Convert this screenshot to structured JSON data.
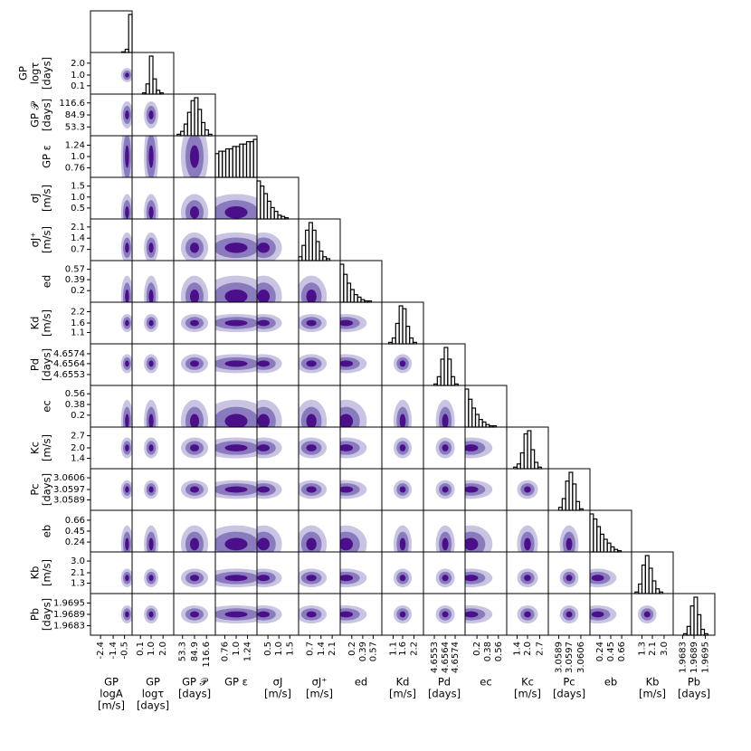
{
  "chart_data": {
    "type": "corner",
    "contour_colors": [
      "#c9c4e2",
      "#8a7bbf",
      "#4b0f8a"
    ],
    "hist_color": "#000000",
    "params": [
      {
        "label": [
          "GP",
          "logA",
          "[m/s]"
        ],
        "lim": [
          -3.2,
          0.1
        ],
        "ticks": [
          -2.4,
          -1.4,
          -0.5
        ],
        "median": -0.3,
        "sigma": 0.2,
        "hist": [
          0,
          0,
          0,
          0,
          0,
          0,
          0,
          0,
          0,
          1,
          5,
          60
        ]
      },
      {
        "label": [
          "GP",
          "logτ",
          "[days]"
        ],
        "lim": [
          -0.6,
          2.9
        ],
        "ticks": [
          0.1,
          {
            "value": 1.0,
            "label": "1.0"
          },
          {
            "value": 2.0,
            "label": "2.0"
          }
        ],
        "median": 1.0,
        "sigma": 0.25,
        "hist": [
          0,
          0,
          0,
          1,
          8,
          30,
          12,
          3,
          1,
          0,
          0,
          0
        ]
      },
      {
        "label": [
          "GP 𝒫",
          "[days]"
        ],
        "lim": [
          30,
          140
        ],
        "ticks": [
          53.3,
          84.9,
          116.6
        ],
        "median": 85,
        "sigma": 15,
        "hist": [
          0,
          1,
          3,
          8,
          16,
          24,
          26,
          18,
          9,
          4,
          1,
          0
        ]
      },
      {
        "label": [
          "GP ε"
        ],
        "lim": [
          0.56,
          1.44
        ],
        "ticks": [
          0.76,
          {
            "value": 1.0,
            "label": "1.0"
          },
          1.24
        ],
        "median": 1.0,
        "sigma": 0.3,
        "hist": [
          10,
          11,
          11,
          12,
          12,
          13,
          13,
          14,
          14,
          15,
          15,
          16
        ]
      },
      {
        "label": [
          "σJ",
          "[m/s]"
        ],
        "lim": [
          0,
          1.9
        ],
        "ticks": [
          0.5,
          {
            "value": 1.0,
            "label": "1.0"
          },
          1.5
        ],
        "median": 0.3,
        "sigma": 0.35,
        "hist": [
          30,
          26,
          20,
          14,
          9,
          6,
          3,
          2,
          1,
          0,
          0,
          0
        ]
      },
      {
        "label": [
          "σJ⁺",
          "[m/s]"
        ],
        "lim": [
          0,
          2.6
        ],
        "ticks": [
          0.7,
          1.4,
          2.1
        ],
        "median": 0.8,
        "sigma": 0.4,
        "hist": [
          2,
          8,
          16,
          20,
          16,
          10,
          5,
          2,
          1,
          0,
          0,
          0
        ]
      },
      {
        "label": [
          "ed"
        ],
        "lim": [
          0,
          0.72
        ],
        "ticks": [
          0.2,
          0.39,
          0.57
        ],
        "median": 0.1,
        "sigma": 0.15,
        "hist": [
          30,
          22,
          15,
          10,
          6,
          4,
          2,
          1,
          1,
          0,
          0,
          0
        ]
      },
      {
        "label": [
          "Kd",
          "[m/s]"
        ],
        "lim": [
          0.5,
          2.7
        ],
        "ticks": [
          1.1,
          1.6,
          2.2
        ],
        "median": 1.6,
        "sigma": 0.2,
        "hist": [
          0,
          0,
          1,
          4,
          14,
          26,
          24,
          12,
          4,
          1,
          0,
          0
        ]
      },
      {
        "label": [
          "Pd",
          "[days]"
        ],
        "lim": [
          4.6542,
          4.6584
        ],
        "ticks": [
          4.6553,
          4.6564,
          4.6574
        ],
        "median": 4.6564,
        "sigma": 0.0004,
        "hist": [
          0,
          0,
          0,
          1,
          6,
          18,
          26,
          18,
          6,
          1,
          0,
          0
        ]
      },
      {
        "label": [
          "ec"
        ],
        "lim": [
          0,
          0.7
        ],
        "ticks": [
          0.2,
          0.38,
          0.56
        ],
        "median": 0.1,
        "sigma": 0.15,
        "hist": [
          30,
          22,
          15,
          10,
          6,
          4,
          2,
          1,
          1,
          0,
          0,
          0
        ]
      },
      {
        "label": [
          "Kc",
          "[m/s]"
        ],
        "lim": [
          0.8,
          3.2
        ],
        "ticks": [
          1.4,
          {
            "value": 2.0,
            "label": "2.0"
          },
          2.7
        ],
        "median": 2.0,
        "sigma": 0.25,
        "hist": [
          0,
          0,
          1,
          3,
          10,
          22,
          24,
          12,
          4,
          1,
          0,
          0
        ]
      },
      {
        "label": [
          "Pc",
          "[days]"
        ],
        "lim": [
          3.0581,
          3.0613
        ],
        "ticks": [
          3.0589,
          3.0597,
          3.0606
        ],
        "median": 3.0597,
        "sigma": 0.0003,
        "hist": [
          0,
          0,
          0,
          2,
          8,
          20,
          26,
          18,
          6,
          1,
          0,
          0
        ]
      },
      {
        "label": [
          "eb"
        ],
        "lim": [
          0.05,
          0.85
        ],
        "ticks": [
          0.24,
          0.45,
          0.66
        ],
        "median": 0.2,
        "sigma": 0.15,
        "hist": [
          30,
          26,
          20,
          14,
          10,
          7,
          4,
          2,
          1,
          0,
          0,
          0
        ]
      },
      {
        "label": [
          "Kb",
          "[m/s]"
        ],
        "lim": [
          0.5,
          3.7
        ],
        "ticks": [
          1.3,
          2.1,
          {
            "value": 3.0,
            "label": "3.0"
          }
        ],
        "median": 1.7,
        "sigma": 0.3,
        "hist": [
          0,
          1,
          6,
          18,
          24,
          16,
          8,
          3,
          1,
          0,
          0,
          0
        ]
      },
      {
        "label": [
          "Pb",
          "[days]"
        ],
        "lim": [
          1.9678,
          1.97
        ],
        "ticks": [
          1.9683,
          1.9689,
          1.9695
        ],
        "median": 1.9689,
        "sigma": 0.0002,
        "hist": [
          0,
          0,
          0,
          1,
          6,
          20,
          26,
          14,
          4,
          1,
          0,
          0
        ]
      }
    ]
  }
}
